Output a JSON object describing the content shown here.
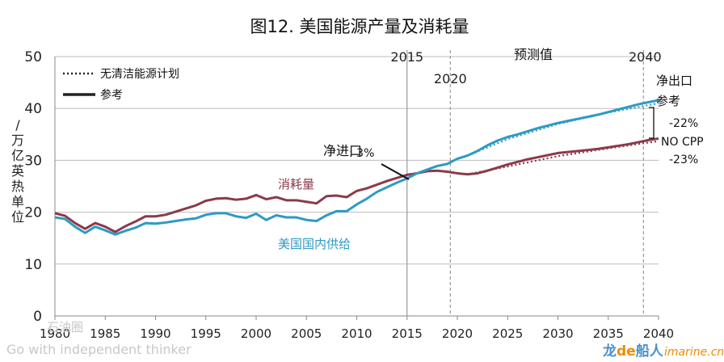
{
  "chart_data": {
    "type": "line",
    "title": "图12. 美国能源产量及消耗量",
    "ylabel": "万亿英热单位/",
    "xlim": [
      1980,
      2040
    ],
    "ylim": [
      0,
      50
    ],
    "x_ticks": [
      "1980",
      "1985",
      "1990",
      "1995",
      "2000",
      "2005",
      "2010",
      "2015",
      "2020",
      "2025",
      "2030",
      "2035",
      "2040"
    ],
    "y_ticks": [
      "0",
      "10",
      "20",
      "30",
      "40",
      "50"
    ],
    "grid": "horizontal",
    "legend": {
      "position": "top-left",
      "entries": [
        {
          "label": "无清洁能源计划",
          "style": "dotted"
        },
        {
          "label": "参考",
          "style": "solid"
        }
      ]
    },
    "vlines": [
      {
        "x": 2015,
        "label": "2015",
        "style": "solid"
      },
      {
        "x": 2019.3,
        "label": "2020",
        "style": "dashed"
      },
      {
        "x": 2038.5,
        "label": "2040",
        "style": "dashed"
      }
    ],
    "projection_label": "预测值",
    "series": [
      {
        "name": "消耗量",
        "color": "#8b3a4a",
        "style": "solid",
        "x": [
          1980,
          1981,
          1982,
          1983,
          1984,
          1985,
          1986,
          1987,
          1988,
          1989,
          1990,
          1991,
          1992,
          1993,
          1994,
          1995,
          1996,
          1997,
          1998,
          1999,
          2000,
          2001,
          2002,
          2003,
          2004,
          2005,
          2006,
          2007,
          2008,
          2009,
          2010,
          2011,
          2012,
          2013,
          2014,
          2015,
          2016,
          2017,
          2018,
          2019,
          2020,
          2021,
          2022,
          2023,
          2024,
          2025,
          2026,
          2027,
          2028,
          2029,
          2030,
          2031,
          2032,
          2033,
          2034,
          2035,
          2036,
          2037,
          2038,
          2039,
          2040
        ],
        "values": [
          19.8,
          19.3,
          17.9,
          16.8,
          17.9,
          17.2,
          16.2,
          17.3,
          18.2,
          19.2,
          19.2,
          19.5,
          20.1,
          20.7,
          21.3,
          22.2,
          22.6,
          22.7,
          22.4,
          22.6,
          23.3,
          22.5,
          22.9,
          22.3,
          22.3,
          22.0,
          21.7,
          23.1,
          23.2,
          22.9,
          24.1,
          24.6,
          25.3,
          26.0,
          26.6,
          27.2,
          27.5,
          27.9,
          28.0,
          27.8,
          27.5,
          27.3,
          27.5,
          28.0,
          28.6,
          29.2,
          29.7,
          30.2,
          30.6,
          31.0,
          31.4,
          31.6,
          31.8,
          32.0,
          32.2,
          32.5,
          32.8,
          33.1,
          33.5,
          33.9,
          34.2
        ]
      },
      {
        "name": "美国国内供给",
        "color": "#2e9ac4",
        "style": "solid",
        "x": [
          1980,
          1981,
          1982,
          1983,
          1984,
          1985,
          1986,
          1987,
          1988,
          1989,
          1990,
          1991,
          1992,
          1993,
          1994,
          1995,
          1996,
          1997,
          1998,
          1999,
          2000,
          2001,
          2002,
          2003,
          2004,
          2005,
          2006,
          2007,
          2008,
          2009,
          2010,
          2011,
          2012,
          2013,
          2014,
          2015,
          2016,
          2017,
          2018,
          2019,
          2020,
          2021,
          2022,
          2023,
          2024,
          2025,
          2026,
          2027,
          2028,
          2029,
          2030,
          2031,
          2032,
          2033,
          2034,
          2035,
          2036,
          2037,
          2038,
          2039,
          2040
        ],
        "values": [
          19.0,
          18.7,
          17.2,
          16.0,
          17.2,
          16.5,
          15.7,
          16.4,
          17.0,
          17.9,
          17.8,
          18.0,
          18.3,
          18.6,
          18.8,
          19.5,
          19.8,
          19.8,
          19.2,
          18.9,
          19.7,
          18.5,
          19.4,
          19.0,
          19.0,
          18.5,
          18.3,
          19.4,
          20.2,
          20.2,
          21.5,
          22.6,
          23.9,
          24.8,
          25.7,
          26.5,
          27.5,
          28.2,
          28.9,
          29.3,
          30.3,
          30.9,
          31.8,
          32.9,
          33.8,
          34.5,
          35.0,
          35.6,
          36.2,
          36.7,
          37.2,
          37.6,
          38.0,
          38.4,
          38.8,
          39.3,
          39.8,
          40.3,
          40.8,
          41.2,
          41.6
        ]
      },
      {
        "name": "消耗量 (无清洁能源计划)",
        "color": "#8b3a4a",
        "style": "dotted",
        "x": [
          2021,
          2025,
          2030,
          2035,
          2040
        ],
        "values": [
          27.3,
          28.8,
          30.8,
          32.3,
          33.7
        ]
      },
      {
        "name": "美国国内供给 (无清洁能源计划)",
        "color": "#2e9ac4",
        "style": "dotted",
        "x": [
          2021,
          2025,
          2030,
          2035,
          2040
        ],
        "values": [
          30.9,
          34.1,
          37.0,
          39.2,
          41.0
        ]
      }
    ],
    "annotations": {
      "consumption_label": "消耗量",
      "supply_label": "美国国内供给",
      "net_import_label": "净进口",
      "net_import_value": ": 3%",
      "net_export_label": "净出口",
      "reference_label": "参考",
      "no_cpp_label": "NO CPP",
      "pct_22": "-22%",
      "pct_23": "-23%"
    }
  },
  "watermarks": {
    "left_logo_text": "石油圈",
    "left_tagline": "Go with independent thinker",
    "right_brand_a": "龙",
    "right_brand_b": "de",
    "right_brand_c": "船人",
    "right_brand_url": "imarine.cn"
  }
}
